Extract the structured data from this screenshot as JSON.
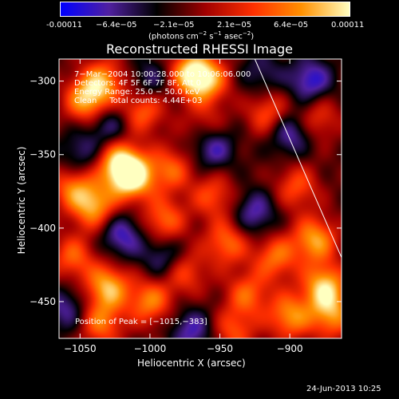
{
  "chart_data": {
    "type": "heatmap",
    "title": "Reconstructed RHESSI Image",
    "xlabel": "Heliocentric X (arcsec)",
    "ylabel": "Heliocentric Y (arcsec)",
    "xlim": [
      -1065,
      -863
    ],
    "ylim": [
      -475,
      -285
    ],
    "x_ticks": [
      -1050,
      -1000,
      -950,
      -900
    ],
    "y_ticks": [
      -300,
      -350,
      -400,
      -450
    ],
    "x_tick_labels": [
      "−1050",
      "−1000",
      "−950",
      "−900"
    ],
    "y_tick_labels": [
      "−300",
      "−350",
      "−400",
      "−450"
    ],
    "colorbar": {
      "range": [
        -0.00011,
        0.00011
      ],
      "tick_labels": [
        "-0.00011",
        "−6.4e−05",
        "−2.1e−05",
        "2.1e−05",
        "6.4e−05",
        "0.00011"
      ],
      "unit_line": [
        "(photons cm",
        "−2",
        " s",
        "−1",
        " asec",
        "−2",
        ")"
      ],
      "colormap": [
        "#0000ff",
        "#5020a0",
        "#000000",
        "#a00000",
        "#ff3000",
        "#ff9000",
        "#ffffc0"
      ]
    },
    "annotations": [
      "7−Mar−2004 10:00:28.000 to 10:06:06.000",
      "Detectors: 4F 5F 6F 7F 8F, Att 0",
      "Energy Range: 25.0 − 50.0 keV",
      "Clean     Total counts: 4.44E+03"
    ],
    "peak_label": "Position of Peak = [−1015,−383]",
    "peak": [
      -1015,
      -383
    ],
    "sources": [
      {
        "x": -1013,
        "y": -365,
        "amp": 1.0
      },
      {
        "x": -1023,
        "y": -355,
        "amp": 0.7
      },
      {
        "x": -1045,
        "y": -313,
        "amp": 0.75
      },
      {
        "x": -1033,
        "y": -300,
        "amp": 0.6
      },
      {
        "x": -1005,
        "y": -320,
        "amp": 0.55
      },
      {
        "x": -970,
        "y": -295,
        "amp": 0.85
      },
      {
        "x": -958,
        "y": -300,
        "amp": 0.55
      },
      {
        "x": -985,
        "y": -360,
        "amp": 0.5
      },
      {
        "x": -955,
        "y": -378,
        "amp": 0.45
      },
      {
        "x": -990,
        "y": -395,
        "amp": 0.55
      },
      {
        "x": -1040,
        "y": -385,
        "amp": 0.7
      },
      {
        "x": -1055,
        "y": -372,
        "amp": 0.55
      },
      {
        "x": -1030,
        "y": -440,
        "amp": 0.75
      },
      {
        "x": -1055,
        "y": -420,
        "amp": 0.5
      },
      {
        "x": -1035,
        "y": -465,
        "amp": 0.55
      },
      {
        "x": -1000,
        "y": -450,
        "amp": 0.6
      },
      {
        "x": -975,
        "y": -430,
        "amp": 0.45
      },
      {
        "x": -945,
        "y": -410,
        "amp": 0.55
      },
      {
        "x": -930,
        "y": -445,
        "amp": 0.5
      },
      {
        "x": -940,
        "y": -470,
        "amp": 0.45
      },
      {
        "x": -910,
        "y": -420,
        "amp": 0.55
      },
      {
        "x": -882,
        "y": -408,
        "amp": 0.7
      },
      {
        "x": -875,
        "y": -440,
        "amp": 0.8
      },
      {
        "x": -900,
        "y": -460,
        "amp": 0.65
      },
      {
        "x": -870,
        "y": -460,
        "amp": 0.6
      },
      {
        "x": -915,
        "y": -322,
        "amp": 0.5
      },
      {
        "x": -895,
        "y": -372,
        "amp": 0.45
      },
      {
        "x": -880,
        "y": -325,
        "amp": 0.4
      },
      {
        "x": -960,
        "y": -330,
        "amp": 0.3
      },
      {
        "x": -955,
        "y": -345,
        "amp": -0.5
      },
      {
        "x": -1030,
        "y": -330,
        "amp": -0.4
      },
      {
        "x": -1020,
        "y": -405,
        "amp": -0.5
      },
      {
        "x": -990,
        "y": -420,
        "amp": -0.4
      },
      {
        "x": -970,
        "y": -470,
        "amp": -0.45
      },
      {
        "x": -900,
        "y": -335,
        "amp": -0.5
      },
      {
        "x": -885,
        "y": -300,
        "amp": -0.55
      },
      {
        "x": -925,
        "y": -390,
        "amp": -0.45
      },
      {
        "x": -1050,
        "y": -350,
        "amp": -0.35
      },
      {
        "x": -1060,
        "y": -455,
        "amp": -0.4
      },
      {
        "x": -1000,
        "y": -300,
        "amp": -0.35
      },
      {
        "x": -920,
        "y": -295,
        "amp": -0.3
      }
    ],
    "limb_line": {
      "x": [
        -925,
        -863
      ],
      "y": [
        -285,
        -420
      ]
    }
  },
  "footer_date": "24-Jun-2013 10:25"
}
